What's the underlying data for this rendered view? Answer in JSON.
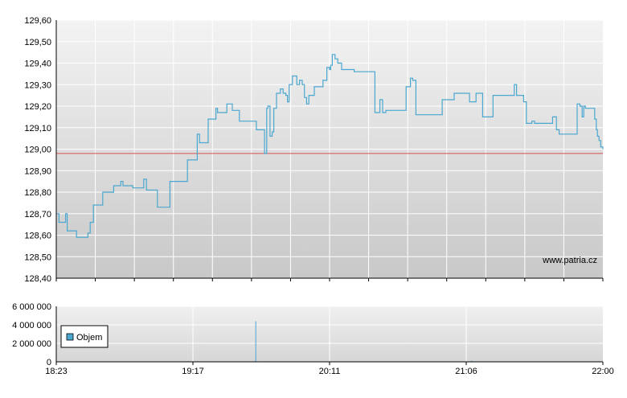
{
  "chart_data": [
    {
      "type": "line",
      "title": "",
      "x_start": "18:23",
      "x_end": "22:00",
      "x_ticks": [
        "18:23",
        "19:17",
        "20:11",
        "21:06",
        "22:00"
      ],
      "ylim": [
        128.4,
        129.6
      ],
      "y_ticks": [
        "128,40",
        "128,50",
        "128,60",
        "128,70",
        "128,80",
        "128,90",
        "129,00",
        "129,10",
        "129,20",
        "129,30",
        "129,40",
        "129,50",
        "129,60"
      ],
      "reference_line": 128.98,
      "watermark": "www.patria.cz",
      "grid": true,
      "series": [
        {
          "name": "",
          "color": "#4aa8d0",
          "points": [
            [
              0.0,
              128.7
            ],
            [
              0.005,
              128.66
            ],
            [
              0.015,
              128.66
            ],
            [
              0.017,
              128.7
            ],
            [
              0.02,
              128.62
            ],
            [
              0.03,
              128.62
            ],
            [
              0.035,
              128.62
            ],
            [
              0.037,
              128.59
            ],
            [
              0.05,
              128.59
            ],
            [
              0.058,
              128.61
            ],
            [
              0.062,
              128.66
            ],
            [
              0.068,
              128.74
            ],
            [
              0.085,
              128.8
            ],
            [
              0.105,
              128.83
            ],
            [
              0.118,
              128.85
            ],
            [
              0.122,
              128.83
            ],
            [
              0.135,
              128.83
            ],
            [
              0.14,
              128.82
            ],
            [
              0.15,
              128.82
            ],
            [
              0.16,
              128.86
            ],
            [
              0.165,
              128.81
            ],
            [
              0.18,
              128.81
            ],
            [
              0.185,
              128.73
            ],
            [
              0.192,
              128.73
            ],
            [
              0.205,
              128.73
            ],
            [
              0.208,
              128.85
            ],
            [
              0.22,
              128.85
            ],
            [
              0.235,
              128.85
            ],
            [
              0.24,
              128.95
            ],
            [
              0.252,
              128.95
            ],
            [
              0.258,
              129.07
            ],
            [
              0.262,
              129.03
            ],
            [
              0.272,
              129.03
            ],
            [
              0.278,
              129.14
            ],
            [
              0.288,
              129.14
            ],
            [
              0.292,
              129.19
            ],
            [
              0.295,
              129.17
            ],
            [
              0.31,
              129.17
            ],
            [
              0.312,
              129.21
            ],
            [
              0.322,
              129.18
            ],
            [
              0.335,
              129.13
            ],
            [
              0.345,
              129.13
            ],
            [
              0.362,
              129.13
            ],
            [
              0.366,
              129.09
            ],
            [
              0.378,
              129.09
            ],
            [
              0.381,
              128.98
            ],
            [
              0.385,
              129.19
            ],
            [
              0.387,
              129.2
            ],
            [
              0.391,
              129.06
            ],
            [
              0.395,
              129.08
            ],
            [
              0.398,
              129.19
            ],
            [
              0.403,
              129.26
            ],
            [
              0.41,
              129.28
            ],
            [
              0.415,
              129.26
            ],
            [
              0.42,
              129.25
            ],
            [
              0.423,
              129.22
            ],
            [
              0.426,
              129.3
            ],
            [
              0.432,
              129.34
            ],
            [
              0.44,
              129.3
            ],
            [
              0.445,
              129.32
            ],
            [
              0.45,
              129.3
            ],
            [
              0.454,
              129.24
            ],
            [
              0.458,
              129.21
            ],
            [
              0.462,
              129.25
            ],
            [
              0.472,
              129.29
            ],
            [
              0.482,
              129.29
            ],
            [
              0.488,
              129.32
            ],
            [
              0.492,
              129.32
            ],
            [
              0.495,
              129.38
            ],
            [
              0.5,
              129.37
            ],
            [
              0.502,
              129.39
            ],
            [
              0.505,
              129.44
            ],
            [
              0.51,
              129.42
            ],
            [
              0.515,
              129.4
            ],
            [
              0.522,
              129.37
            ],
            [
              0.535,
              129.37
            ],
            [
              0.545,
              129.36
            ],
            [
              0.56,
              129.36
            ],
            [
              0.57,
              129.36
            ],
            [
              0.58,
              129.36
            ],
            [
              0.583,
              129.17
            ],
            [
              0.588,
              129.17
            ],
            [
              0.592,
              129.23
            ],
            [
              0.597,
              129.17
            ],
            [
              0.603,
              129.18
            ],
            [
              0.62,
              129.18
            ],
            [
              0.636,
              129.18
            ],
            [
              0.64,
              129.29
            ],
            [
              0.648,
              129.33
            ],
            [
              0.652,
              129.32
            ],
            [
              0.655,
              129.32
            ],
            [
              0.658,
              129.16
            ],
            [
              0.67,
              129.16
            ],
            [
              0.69,
              129.16
            ],
            [
              0.703,
              129.16
            ],
            [
              0.706,
              129.23
            ],
            [
              0.72,
              129.23
            ],
            [
              0.728,
              129.26
            ],
            [
              0.745,
              129.26
            ],
            [
              0.752,
              129.26
            ],
            [
              0.756,
              129.22
            ],
            [
              0.768,
              129.26
            ],
            [
              0.775,
              129.26
            ],
            [
              0.78,
              129.15
            ],
            [
              0.795,
              129.15
            ],
            [
              0.799,
              129.25
            ],
            [
              0.812,
              129.25
            ],
            [
              0.825,
              129.25
            ],
            [
              0.835,
              129.25
            ],
            [
              0.838,
              129.3
            ],
            [
              0.842,
              129.25
            ],
            [
              0.85,
              129.25
            ],
            [
              0.855,
              129.22
            ],
            [
              0.86,
              129.12
            ],
            [
              0.865,
              129.12
            ],
            [
              0.87,
              129.13
            ],
            [
              0.875,
              129.12
            ],
            [
              0.885,
              129.12
            ],
            [
              0.895,
              129.12
            ],
            [
              0.905,
              129.12
            ],
            [
              0.908,
              129.15
            ],
            [
              0.912,
              129.15
            ],
            [
              0.915,
              129.09
            ],
            [
              0.92,
              129.07
            ],
            [
              0.935,
              129.07
            ],
            [
              0.95,
              129.07
            ],
            [
              0.953,
              129.21
            ],
            [
              0.958,
              129.2
            ],
            [
              0.962,
              129.15
            ],
            [
              0.965,
              129.2
            ],
            [
              0.968,
              129.19
            ],
            [
              0.982,
              129.19
            ],
            [
              0.985,
              129.14
            ],
            [
              0.988,
              129.09
            ],
            [
              0.99,
              129.06
            ],
            [
              0.993,
              129.04
            ],
            [
              0.996,
              129.01
            ],
            [
              1.0,
              129.0
            ]
          ]
        }
      ]
    },
    {
      "type": "bar",
      "title": "",
      "ylim": [
        0,
        6000000
      ],
      "y_ticks": [
        "0",
        "2 000 000",
        "4 000 000",
        "6 000 000"
      ],
      "x_ticks": [
        "18:23",
        "19:17",
        "20:11",
        "21:06",
        "22:00"
      ],
      "legend": [
        "Objem"
      ],
      "legend_placement": "left",
      "grid": true,
      "series": [
        {
          "name": "Objem",
          "color": "#4aa8d0",
          "bars": [
            [
              0.03,
              30000
            ],
            [
              0.12,
              25000
            ],
            [
              0.17,
              20000
            ],
            [
              0.365,
              4400000
            ],
            [
              0.385,
              60000
            ],
            [
              0.52,
              40000
            ],
            [
              0.62,
              25000
            ],
            [
              0.7,
              40000
            ],
            [
              0.76,
              120000
            ],
            [
              0.83,
              30000
            ],
            [
              0.88,
              35000
            ],
            [
              0.92,
              30000
            ],
            [
              0.96,
              30000
            ]
          ]
        }
      ]
    }
  ]
}
